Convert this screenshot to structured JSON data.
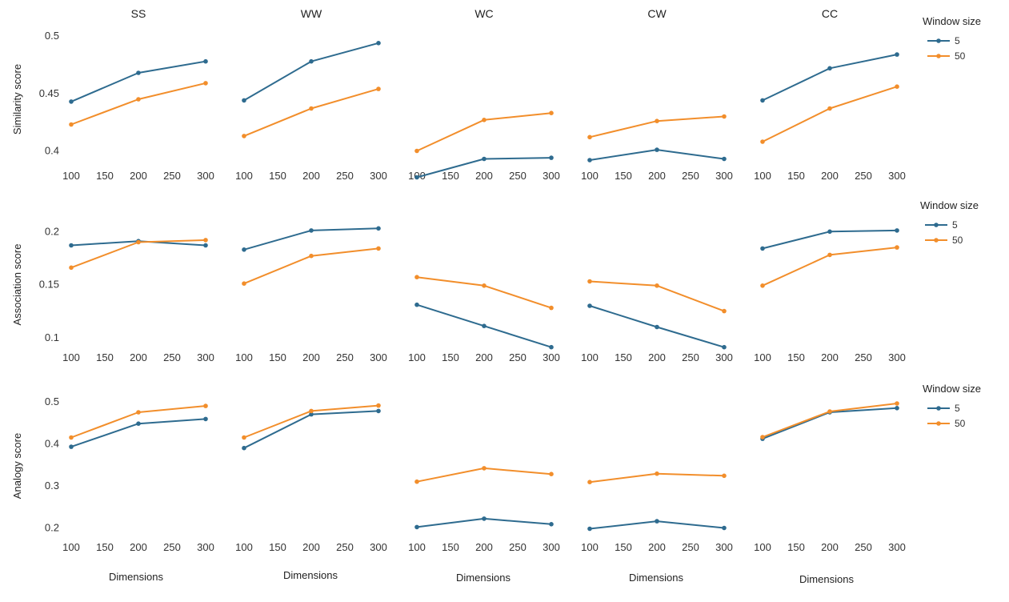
{
  "colors": {
    "5": "#2e6b8f",
    "50": "#f28e2b"
  },
  "chart_data": {
    "type": "line",
    "columns": [
      "SS",
      "WW",
      "WC",
      "CW",
      "CC"
    ],
    "x": [
      100,
      200,
      300
    ],
    "xticks": [
      "100",
      "150",
      "200",
      "250",
      "300"
    ],
    "xlabel": "Dimensions",
    "legend": {
      "title": "Window size",
      "entries": [
        "5",
        "50"
      ]
    },
    "rows": [
      {
        "ylabel": "Similarity score",
        "ylim": [
          0.385,
          0.505
        ],
        "yticks": [
          "0.5",
          "0.45",
          "0.4"
        ],
        "panels": [
          {
            "series": [
              {
                "name": "5",
                "values": [
                  0.443,
                  0.468,
                  0.478
                ]
              },
              {
                "name": "50",
                "values": [
                  0.423,
                  0.445,
                  0.459
                ]
              }
            ]
          },
          {
            "series": [
              {
                "name": "5",
                "values": [
                  0.444,
                  0.478,
                  0.494
                ]
              },
              {
                "name": "50",
                "values": [
                  0.413,
                  0.437,
                  0.454
                ]
              }
            ]
          },
          {
            "series": [
              {
                "name": "5",
                "values": [
                  0.377,
                  0.393,
                  0.394
                ]
              },
              {
                "name": "50",
                "values": [
                  0.4,
                  0.427,
                  0.433
                ]
              }
            ]
          },
          {
            "series": [
              {
                "name": "5",
                "values": [
                  0.392,
                  0.401,
                  0.393
                ]
              },
              {
                "name": "50",
                "values": [
                  0.412,
                  0.426,
                  0.43
                ]
              }
            ]
          },
          {
            "series": [
              {
                "name": "5",
                "values": [
                  0.444,
                  0.472,
                  0.484
                ]
              },
              {
                "name": "50",
                "values": [
                  0.408,
                  0.437,
                  0.456
                ]
              }
            ]
          }
        ]
      },
      {
        "ylabel": "Association  score",
        "ylim": [
          0.09,
          0.21
        ],
        "yticks": [
          "0.2",
          "0.15",
          "0.1"
        ],
        "panels": [
          {
            "series": [
              {
                "name": "5",
                "values": [
                  0.187,
                  0.191,
                  0.187
                ]
              },
              {
                "name": "50",
                "values": [
                  0.166,
                  0.19,
                  0.192
                ]
              }
            ]
          },
          {
            "series": [
              {
                "name": "5",
                "values": [
                  0.183,
                  0.201,
                  0.203
                ]
              },
              {
                "name": "50",
                "values": [
                  0.151,
                  0.177,
                  0.184
                ]
              }
            ]
          },
          {
            "series": [
              {
                "name": "5",
                "values": [
                  0.131,
                  0.111,
                  0.091
                ]
              },
              {
                "name": "50",
                "values": [
                  0.157,
                  0.149,
                  0.128
                ]
              }
            ]
          },
          {
            "series": [
              {
                "name": "5",
                "values": [
                  0.13,
                  0.11,
                  0.091
                ]
              },
              {
                "name": "50",
                "values": [
                  0.153,
                  0.149,
                  0.125
                ]
              }
            ]
          },
          {
            "series": [
              {
                "name": "5",
                "values": [
                  0.184,
                  0.2,
                  0.201
                ]
              },
              {
                "name": "50",
                "values": [
                  0.149,
                  0.178,
                  0.185
                ]
              }
            ]
          }
        ]
      },
      {
        "ylabel": "Analogy  score",
        "ylim": [
          0.18,
          0.515
        ],
        "yticks": [
          "0.5",
          "0.4",
          "0.3",
          "0.2"
        ],
        "panels": [
          {
            "series": [
              {
                "name": "5",
                "values": [
                  0.393,
                  0.448,
                  0.459
                ]
              },
              {
                "name": "50",
                "values": [
                  0.415,
                  0.475,
                  0.49
                ]
              }
            ]
          },
          {
            "series": [
              {
                "name": "5",
                "values": [
                  0.39,
                  0.47,
                  0.478
                ]
              },
              {
                "name": "50",
                "values": [
                  0.415,
                  0.478,
                  0.491
                ]
              }
            ]
          },
          {
            "series": [
              {
                "name": "5",
                "values": [
                  0.202,
                  0.222,
                  0.209
                ]
              },
              {
                "name": "50",
                "values": [
                  0.31,
                  0.342,
                  0.328
                ]
              }
            ]
          },
          {
            "series": [
              {
                "name": "5",
                "values": [
                  0.198,
                  0.216,
                  0.2
                ]
              },
              {
                "name": "50",
                "values": [
                  0.309,
                  0.329,
                  0.324
                ]
              }
            ]
          },
          {
            "series": [
              {
                "name": "5",
                "values": [
                  0.412,
                  0.475,
                  0.485
                ]
              },
              {
                "name": "50",
                "values": [
                  0.416,
                  0.477,
                  0.496
                ]
              }
            ]
          }
        ]
      }
    ]
  }
}
